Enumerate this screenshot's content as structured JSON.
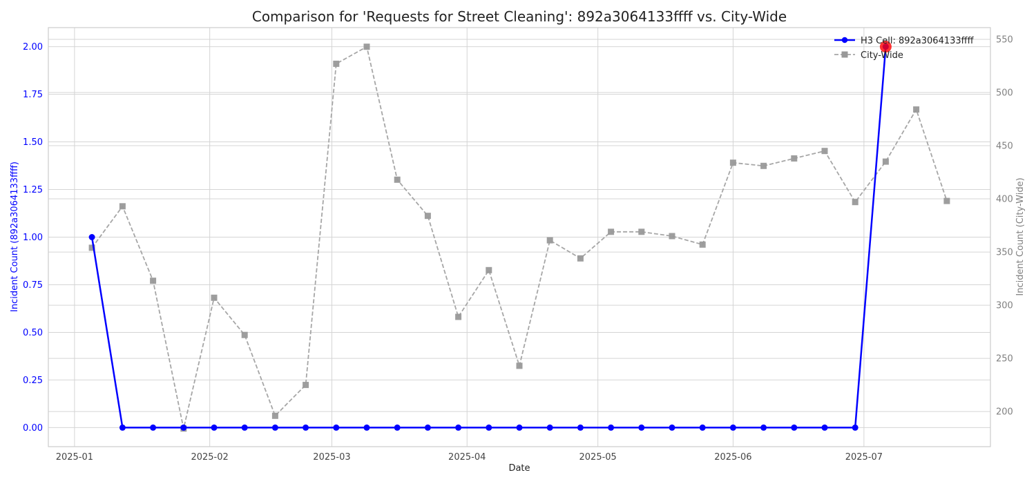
{
  "chart_data": {
    "type": "line",
    "title": "Comparison for 'Requests for Street Cleaning': 892a3064133ffff vs. City-Wide",
    "xlabel": "Date",
    "ylabel_left": "Incident Count (892a3064133ffff)",
    "ylabel_right": "Incident Count (City-Wide)",
    "x_ticks": [
      "2025-01-01",
      "2025-02-01",
      "2025-03-01",
      "2025-04-01",
      "2025-05-01",
      "2025-06-01",
      "2025-07-01"
    ],
    "x_tick_labels": [
      "2025-01",
      "2025-02",
      "2025-03",
      "2025-04",
      "2025-05",
      "2025-06",
      "2025-07"
    ],
    "xlim": [
      "2024-12-26",
      "2025-07-30"
    ],
    "ylim_left": [
      -0.1,
      2.1
    ],
    "ylim_right": [
      167,
      561
    ],
    "y_ticks_left": [
      0.0,
      0.25,
      0.5,
      0.75,
      1.0,
      1.25,
      1.5,
      1.75,
      2.0
    ],
    "y_tick_labels_left": [
      "0.00",
      "0.25",
      "0.50",
      "0.75",
      "1.00",
      "1.25",
      "1.50",
      "1.75",
      "2.00"
    ],
    "y_ticks_right": [
      200,
      250,
      300,
      350,
      400,
      450,
      500,
      550
    ],
    "y_tick_labels_right": [
      "200",
      "250",
      "300",
      "350",
      "400",
      "450",
      "500",
      "550"
    ],
    "grid": true,
    "legend_position": "top-right",
    "series": [
      {
        "name": "H3 Cell: 892a3064133ffff",
        "axis": "left",
        "color": "#0000ff",
        "style": "solid",
        "marker": "circle",
        "x": [
          "2025-01-05",
          "2025-01-12",
          "2025-01-19",
          "2025-01-26",
          "2025-02-02",
          "2025-02-09",
          "2025-02-16",
          "2025-02-23",
          "2025-03-02",
          "2025-03-09",
          "2025-03-16",
          "2025-03-23",
          "2025-03-30",
          "2025-04-06",
          "2025-04-13",
          "2025-04-20",
          "2025-04-27",
          "2025-05-04",
          "2025-05-11",
          "2025-05-18",
          "2025-05-25",
          "2025-06-01",
          "2025-06-08",
          "2025-06-15",
          "2025-06-22",
          "2025-06-29",
          "2025-07-06"
        ],
        "values": [
          1,
          0,
          0,
          0,
          0,
          0,
          0,
          0,
          0,
          0,
          0,
          0,
          0,
          0,
          0,
          0,
          0,
          0,
          0,
          0,
          0,
          0,
          0,
          0,
          0,
          0,
          2
        ]
      },
      {
        "name": "City-Wide",
        "axis": "right",
        "color": "#999999",
        "style": "dashed",
        "marker": "square",
        "x": [
          "2025-01-05",
          "2025-01-12",
          "2025-01-19",
          "2025-01-26",
          "2025-02-02",
          "2025-02-09",
          "2025-02-16",
          "2025-02-23",
          "2025-03-02",
          "2025-03-09",
          "2025-03-16",
          "2025-03-23",
          "2025-03-30",
          "2025-04-06",
          "2025-04-13",
          "2025-04-20",
          "2025-04-27",
          "2025-05-04",
          "2025-05-11",
          "2025-05-18",
          "2025-05-25",
          "2025-06-01",
          "2025-06-08",
          "2025-06-15",
          "2025-06-22",
          "2025-06-29",
          "2025-07-06",
          "2025-07-13",
          "2025-07-20"
        ],
        "values": [
          354,
          393,
          323,
          184,
          307,
          272,
          196,
          225,
          527,
          543,
          418,
          384,
          289,
          333,
          243,
          361,
          344,
          369,
          369,
          365,
          357,
          434,
          431,
          438,
          445,
          397,
          435,
          484,
          398
        ]
      }
    ],
    "highlight": {
      "x": "2025-07-06",
      "value": 2,
      "axis": "left",
      "color": "#ff0000"
    }
  }
}
